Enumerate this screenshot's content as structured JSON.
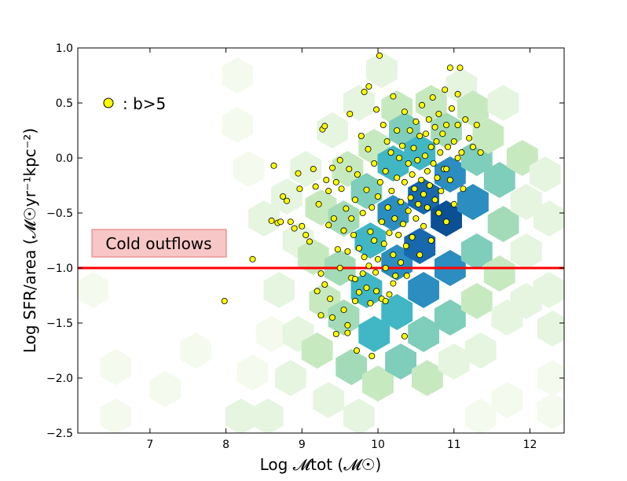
{
  "chart_data": {
    "type": "scatter",
    "title": "",
    "xlabel": "Log 𝓜tot (𝓜☉)",
    "ylabel": "Log SFR/area (𝓜☉yr⁻¹kpc⁻²)",
    "xlim": [
      6.05,
      12.45
    ],
    "ylim": [
      -2.5,
      1.0
    ],
    "xticks": [
      7,
      8,
      9,
      10,
      11,
      12
    ],
    "xtick_labels": [
      "7",
      "8",
      "9",
      "10",
      "11",
      "12"
    ],
    "yticks": [
      1.0,
      0.5,
      0.0,
      -0.5,
      -1.0,
      -1.5,
      -2.0,
      -2.5
    ],
    "ytick_labels": [
      "1.0",
      "0.5",
      "0.0",
      "−0.5",
      "−1.0",
      "−1.5",
      "−2.0",
      "−2.5"
    ],
    "grid": false,
    "legend": {
      "position": "top-left",
      "entries": [
        {
          "marker": "yellow-circle",
          "label": ": b>5"
        }
      ]
    },
    "threshold_line": {
      "y": -1.0,
      "color": "#ff0000"
    },
    "annotation": {
      "text": "Cold outflows",
      "x": 6.9,
      "y": -0.77
    },
    "colors": {
      "points": "#ffff00",
      "point_edge": "#000000",
      "line": "#ff0000",
      "annotation_fill": "#f7c6c6",
      "annotation_edge": "#e57373"
    },
    "hexbin": {
      "colormap": [
        "#f4fbee",
        "#e5f5e0",
        "#c7e9c0",
        "#a3dbb8",
        "#7fcdbb",
        "#41b6c4",
        "#2c8dc0",
        "#1768ac",
        "#0b4f94"
      ],
      "cells": [
        [
          6.55,
          -1.9,
          0
        ],
        [
          6.55,
          -2.35,
          0
        ],
        [
          7.2,
          -2.1,
          0
        ],
        [
          7.6,
          -1.75,
          0
        ],
        [
          8.2,
          -2.35,
          1
        ],
        [
          8.55,
          -2.35,
          1
        ],
        [
          8.35,
          -1.95,
          0
        ],
        [
          8.6,
          -1.6,
          0
        ],
        [
          8.15,
          0.75,
          0
        ],
        [
          8.15,
          0.3,
          0
        ],
        [
          8.3,
          -0.1,
          0
        ],
        [
          8.5,
          -0.55,
          1
        ],
        [
          8.8,
          -0.35,
          1
        ],
        [
          8.95,
          -0.75,
          1
        ],
        [
          8.7,
          -1.2,
          1
        ],
        [
          8.95,
          -1.6,
          1
        ],
        [
          8.85,
          -2.0,
          1
        ],
        [
          9.05,
          -0.1,
          1
        ],
        [
          9.25,
          -0.45,
          2
        ],
        [
          9.15,
          -0.9,
          2
        ],
        [
          9.3,
          -1.3,
          2
        ],
        [
          9.2,
          -1.75,
          2
        ],
        [
          9.35,
          -2.2,
          1
        ],
        [
          9.4,
          0.25,
          1
        ],
        [
          9.6,
          -0.1,
          2
        ],
        [
          9.55,
          -0.55,
          3
        ],
        [
          9.5,
          -1.0,
          3
        ],
        [
          9.55,
          -1.45,
          3
        ],
        [
          9.65,
          -1.9,
          3
        ],
        [
          9.75,
          -2.35,
          1
        ],
        [
          9.75,
          0.5,
          1
        ],
        [
          9.95,
          0.1,
          2
        ],
        [
          9.85,
          -0.3,
          4
        ],
        [
          9.9,
          -0.75,
          5
        ],
        [
          9.85,
          -1.2,
          5
        ],
        [
          9.95,
          -1.6,
          5
        ],
        [
          10.0,
          -2.05,
          2
        ],
        [
          10.05,
          0.8,
          1
        ],
        [
          10.25,
          0.45,
          2
        ],
        [
          10.2,
          -0.05,
          5
        ],
        [
          10.2,
          -0.5,
          6
        ],
        [
          10.25,
          -0.95,
          6
        ],
        [
          10.25,
          -1.4,
          5
        ],
        [
          10.3,
          -1.85,
          4
        ],
        [
          10.35,
          0.25,
          4
        ],
        [
          10.55,
          0.05,
          5
        ],
        [
          10.6,
          -0.35,
          7
        ],
        [
          10.55,
          -0.8,
          7
        ],
        [
          10.6,
          -1.2,
          6
        ],
        [
          10.6,
          -1.6,
          4
        ],
        [
          10.65,
          -2.0,
          2
        ],
        [
          10.7,
          0.5,
          2
        ],
        [
          10.9,
          0.25,
          3
        ],
        [
          10.95,
          -0.15,
          6
        ],
        [
          10.9,
          -0.55,
          8
        ],
        [
          10.95,
          -1.0,
          6
        ],
        [
          10.95,
          -1.45,
          4
        ],
        [
          11.0,
          -1.85,
          1
        ],
        [
          11.1,
          0.65,
          1
        ],
        [
          11.25,
          0.45,
          2
        ],
        [
          11.3,
          0.0,
          4
        ],
        [
          11.25,
          -0.4,
          6
        ],
        [
          11.3,
          -0.85,
          4
        ],
        [
          11.3,
          -1.3,
          2
        ],
        [
          11.35,
          -1.75,
          1
        ],
        [
          11.45,
          0.2,
          2
        ],
        [
          11.65,
          0.5,
          1
        ],
        [
          11.6,
          -0.2,
          4
        ],
        [
          11.65,
          -0.6,
          3
        ],
        [
          11.6,
          -1.05,
          2
        ],
        [
          11.7,
          -1.45,
          1
        ],
        [
          11.9,
          0.0,
          2
        ],
        [
          11.95,
          -0.4,
          1
        ],
        [
          11.95,
          -0.85,
          1
        ],
        [
          11.95,
          -1.3,
          1
        ],
        [
          12.2,
          -0.15,
          1
        ],
        [
          12.25,
          -0.55,
          1
        ],
        [
          12.25,
          -1.2,
          1
        ],
        [
          12.3,
          -1.55,
          1
        ],
        [
          12.3,
          -2.0,
          0
        ],
        [
          12.3,
          -2.3,
          0
        ],
        [
          11.7,
          -2.2,
          0
        ],
        [
          11.35,
          -2.35,
          0
        ],
        [
          6.25,
          -1.2,
          0
        ]
      ]
    },
    "points": [
      [
        7.98,
        -1.3
      ],
      [
        8.35,
        -0.92
      ],
      [
        8.6,
        -0.57
      ],
      [
        8.63,
        -0.07
      ],
      [
        8.68,
        -0.59
      ],
      [
        8.72,
        -0.58
      ],
      [
        8.75,
        -0.35
      ],
      [
        8.8,
        -0.39
      ],
      [
        8.85,
        -0.58
      ],
      [
        8.9,
        -0.64
      ],
      [
        8.95,
        -0.14
      ],
      [
        8.97,
        -0.28
      ],
      [
        9.0,
        -0.62
      ],
      [
        9.05,
        -0.7
      ],
      [
        9.1,
        -0.76
      ],
      [
        9.15,
        -0.1
      ],
      [
        9.18,
        -0.26
      ],
      [
        9.2,
        -1.21
      ],
      [
        9.22,
        -0.42
      ],
      [
        9.25,
        -1.05
      ],
      [
        9.25,
        -1.43
      ],
      [
        9.27,
        0.26
      ],
      [
        9.3,
        0.29
      ],
      [
        9.3,
        -1.15
      ],
      [
        9.32,
        -0.2
      ],
      [
        9.35,
        -0.3
      ],
      [
        9.35,
        -0.61
      ],
      [
        9.37,
        -1.28
      ],
      [
        9.4,
        -0.09
      ],
      [
        9.4,
        -1.45
      ],
      [
        9.42,
        -0.55
      ],
      [
        9.45,
        -1.6
      ],
      [
        9.47,
        -0.83
      ],
      [
        9.5,
        -0.02
      ],
      [
        9.5,
        -1.0
      ],
      [
        9.52,
        -0.28
      ],
      [
        9.55,
        -1.38
      ],
      [
        9.55,
        -0.66
      ],
      [
        9.58,
        -0.46
      ],
      [
        9.6,
        -0.85
      ],
      [
        9.6,
        -1.59
      ],
      [
        9.62,
        -0.1
      ],
      [
        9.63,
        0.4
      ],
      [
        9.65,
        -0.55
      ],
      [
        9.65,
        -1.09
      ],
      [
        9.68,
        -0.7
      ],
      [
        9.7,
        -0.38
      ],
      [
        9.7,
        -1.3
      ],
      [
        9.72,
        -1.75
      ],
      [
        9.73,
        -0.15
      ],
      [
        9.75,
        -0.82
      ],
      [
        9.75,
        -1.22
      ],
      [
        9.78,
        0.2
      ],
      [
        9.8,
        -0.5
      ],
      [
        9.8,
        -1.05
      ],
      [
        9.82,
        0.6
      ],
      [
        9.82,
        -0.9
      ],
      [
        9.85,
        -0.29
      ],
      [
        9.85,
        -1.18
      ],
      [
        9.87,
        0.08
      ],
      [
        9.88,
        0.65
      ],
      [
        9.9,
        -0.67
      ],
      [
        9.9,
        -1.32
      ],
      [
        9.92,
        -0.45
      ],
      [
        9.92,
        -1.8
      ],
      [
        9.95,
        -0.05
      ],
      [
        9.95,
        -0.75
      ],
      [
        9.97,
        -1.04
      ],
      [
        9.98,
        0.44
      ],
      [
        10.0,
        -0.35
      ],
      [
        10.0,
        -0.92
      ],
      [
        10.02,
        0.93
      ],
      [
        10.03,
        -0.22
      ],
      [
        10.05,
        -0.58
      ],
      [
        10.05,
        -1.28
      ],
      [
        10.07,
        0.3
      ],
      [
        10.08,
        -0.78
      ],
      [
        10.1,
        -0.12
      ],
      [
        10.1,
        -1.0
      ],
      [
        10.12,
        0.15
      ],
      [
        10.13,
        -0.45
      ],
      [
        10.15,
        -0.68
      ],
      [
        10.15,
        -1.24
      ],
      [
        10.17,
        0.05
      ],
      [
        10.18,
        -0.3
      ],
      [
        10.2,
        -0.88
      ],
      [
        10.2,
        0.56
      ],
      [
        10.22,
        -0.55
      ],
      [
        10.23,
        -1.07
      ],
      [
        10.25,
        -0.18
      ],
      [
        10.25,
        0.25
      ],
      [
        10.27,
        -0.7
      ],
      [
        10.28,
        0.0
      ],
      [
        10.3,
        -0.4
      ],
      [
        10.3,
        -0.95
      ],
      [
        10.32,
        0.11
      ],
      [
        10.33,
        -0.6
      ],
      [
        10.35,
        -0.22
      ],
      [
        10.35,
        0.42
      ],
      [
        10.37,
        -0.8
      ],
      [
        10.38,
        -1.07
      ],
      [
        10.4,
        -0.05
      ],
      [
        10.4,
        -0.48
      ],
      [
        10.42,
        0.25
      ],
      [
        10.43,
        -0.36
      ],
      [
        10.45,
        -0.15
      ],
      [
        10.45,
        -0.72
      ],
      [
        10.47,
        0.09
      ],
      [
        10.48,
        -0.28
      ],
      [
        10.5,
        -0.55
      ],
      [
        10.5,
        0.33
      ],
      [
        10.52,
        -0.02
      ],
      [
        10.53,
        -0.42
      ],
      [
        10.55,
        -0.88
      ],
      [
        10.55,
        0.2
      ],
      [
        10.57,
        -0.2
      ],
      [
        10.58,
        0.48
      ],
      [
        10.6,
        -0.33
      ],
      [
        10.6,
        -0.62
      ],
      [
        10.62,
        0.02
      ],
      [
        10.63,
        0.22
      ],
      [
        10.65,
        -0.12
      ],
      [
        10.65,
        -0.45
      ],
      [
        10.67,
        0.35
      ],
      [
        10.68,
        -0.25
      ],
      [
        10.7,
        0.1
      ],
      [
        10.7,
        -0.75
      ],
      [
        10.72,
        0.55
      ],
      [
        10.73,
        -0.05
      ],
      [
        10.75,
        -0.38
      ],
      [
        10.75,
        0.28
      ],
      [
        10.77,
        0.15
      ],
      [
        10.78,
        -0.18
      ],
      [
        10.8,
        -0.5
      ],
      [
        10.8,
        0.4
      ],
      [
        10.82,
        0.05
      ],
      [
        10.83,
        -0.3
      ],
      [
        10.85,
        0.22
      ],
      [
        10.87,
        -0.1
      ],
      [
        10.88,
        0.62
      ],
      [
        10.9,
        0.3
      ],
      [
        10.9,
        -0.58
      ],
      [
        10.92,
        0.1
      ],
      [
        10.95,
        0.82
      ],
      [
        10.95,
        -0.2
      ],
      [
        10.97,
        0.45
      ],
      [
        11.0,
        0.15
      ],
      [
        11.0,
        -0.42
      ],
      [
        11.05,
        0.3
      ],
      [
        11.05,
        0.58
      ],
      [
        11.08,
        0.82
      ],
      [
        11.1,
        0.05
      ],
      [
        11.12,
        -0.28
      ],
      [
        11.15,
        0.35
      ],
      [
        11.2,
        0.18
      ],
      [
        11.25,
        0.1
      ],
      [
        11.3,
        0.3
      ],
      [
        11.35,
        0.05
      ],
      [
        11.05,
        0.0
      ],
      [
        10.9,
        -0.1
      ],
      [
        9.45,
        -0.22
      ],
      [
        9.6,
        -1.52
      ],
      [
        9.7,
        -1.1
      ],
      [
        10.1,
        -1.3
      ],
      [
        10.35,
        -1.62
      ],
      [
        10.2,
        -1.14
      ],
      [
        9.88,
        -0.98
      ],
      [
        9.98,
        -1.21
      ]
    ]
  }
}
